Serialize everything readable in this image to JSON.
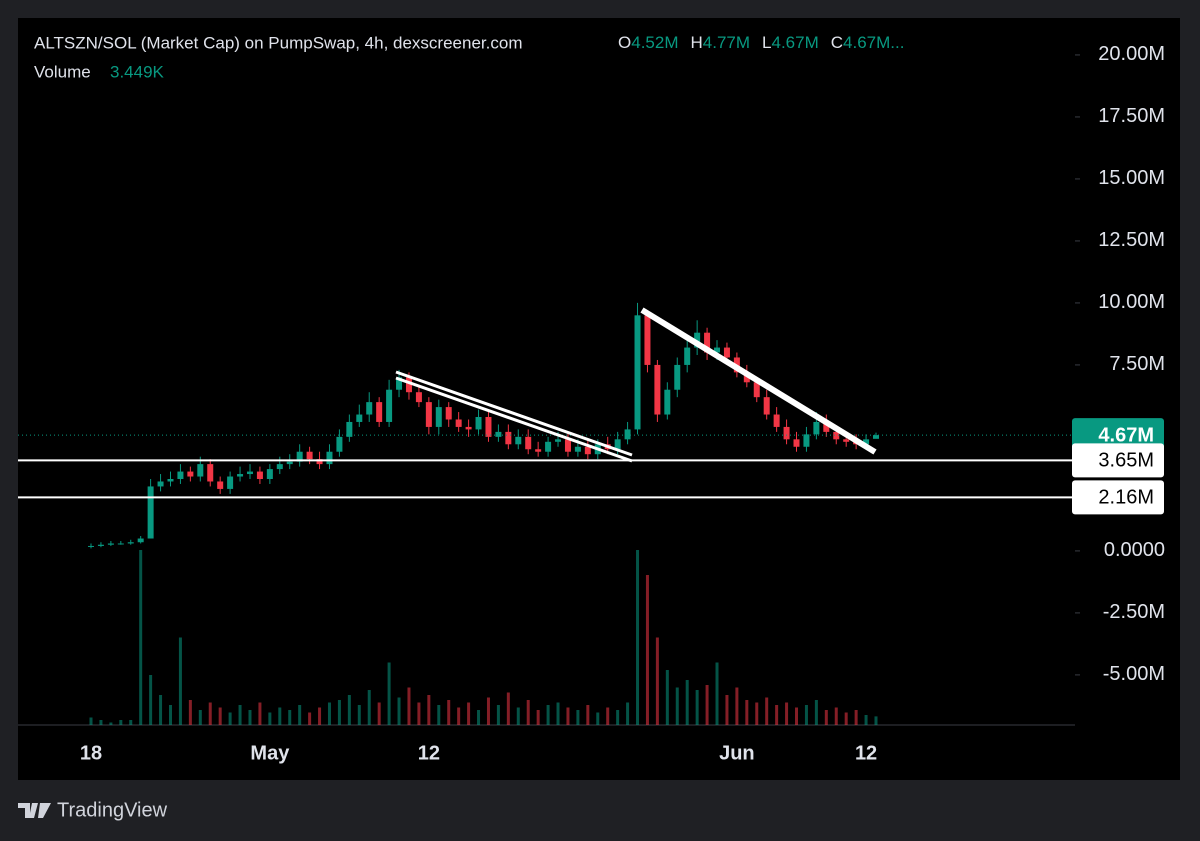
{
  "chart_data": {
    "type": "candlestick",
    "title": "ALTSZN/SOL (Market Cap) on PumpSwap, 4h, dexscreener.com",
    "ohlc_legend": [
      {
        "key": "O",
        "value": "4.52M"
      },
      {
        "key": "H",
        "value": "4.77M"
      },
      {
        "key": "L",
        "value": "4.67M"
      },
      {
        "key": "C",
        "value": "4.67M..."
      }
    ],
    "volume_label": "Volume",
    "volume_value": "3.449K",
    "up_color": "#089981",
    "down_color": "#f23645",
    "ylim": [
      -7.02,
      21.49
    ],
    "yticks": [
      {
        "value": -5,
        "label": "-5.00M"
      },
      {
        "value": -2.5,
        "label": "-2.50M"
      },
      {
        "value": 0,
        "label": "0.0000"
      },
      {
        "value": 7.5,
        "label": "7.50M"
      },
      {
        "value": 10,
        "label": "10.00M"
      },
      {
        "value": 12.5,
        "label": "12.50M"
      },
      {
        "value": 15,
        "label": "15.00M"
      },
      {
        "value": 17.5,
        "label": "17.50M"
      },
      {
        "value": 20,
        "label": "20.00M"
      }
    ],
    "price_lines": [
      {
        "value": 4.67,
        "label": "4.67M",
        "color": "#089981",
        "style": "dotted"
      },
      {
        "value": 3.65,
        "label": "3.65M",
        "color": "#ffffff",
        "style": "solid"
      },
      {
        "value": 2.16,
        "label": "2.16M",
        "color": "#ffffff",
        "style": "solid"
      }
    ],
    "categories": [
      "18",
      null,
      null,
      null,
      null,
      null,
      null,
      null,
      null,
      null,
      null,
      null,
      null,
      null,
      null,
      null,
      null,
      null,
      "May",
      null,
      null,
      null,
      null,
      null,
      null,
      null,
      null,
      null,
      null,
      null,
      null,
      null,
      null,
      null,
      "12",
      null,
      null,
      null,
      null,
      null,
      null,
      null,
      null,
      null,
      null,
      null,
      null,
      null,
      null,
      null,
      null,
      null,
      null,
      null,
      null,
      null,
      null,
      null,
      null,
      null,
      null,
      null,
      null,
      null,
      null,
      "Jun",
      null,
      null,
      null,
      null,
      null,
      null,
      null,
      null,
      null,
      null,
      null,
      null,
      "12",
      null
    ],
    "open": [
      0.2,
      0.2,
      0.25,
      0.3,
      0.3,
      0.35,
      0.5,
      2.6,
      2.8,
      2.9,
      3.2,
      3.0,
      3.5,
      2.8,
      2.5,
      3.0,
      3.1,
      3.2,
      2.9,
      3.3,
      3.5,
      3.6,
      4.0,
      3.7,
      3.5,
      4.0,
      4.6,
      5.2,
      5.5,
      6.0,
      5.2,
      6.5,
      7.0,
      6.4,
      6.0,
      5.0,
      5.8,
      5.3,
      5.0,
      4.9,
      5.4,
      4.6,
      4.8,
      4.3,
      4.6,
      4.1,
      4.0,
      4.4,
      4.5,
      4.0,
      4.2,
      3.9,
      4.3,
      4.1,
      4.5,
      4.9,
      9.5,
      7.5,
      5.5,
      6.5,
      7.5,
      8.2,
      8.8,
      8.0,
      8.2,
      7.8,
      7.2,
      6.8,
      6.2,
      5.5,
      5.0,
      4.5,
      4.2,
      4.7,
      5.2,
      4.8,
      4.5,
      4.4,
      4.3,
      4.52
    ],
    "high": [
      0.3,
      0.35,
      0.4,
      0.4,
      0.45,
      0.6,
      2.9,
      3.1,
      3.2,
      3.5,
      3.4,
      3.8,
      3.7,
      3.0,
      3.2,
      3.4,
      3.5,
      3.4,
      3.5,
      3.8,
      3.9,
      4.3,
      4.2,
      4.0,
      4.3,
      4.9,
      5.5,
      5.9,
      6.4,
      6.2,
      6.9,
      7.3,
      7.2,
      6.7,
      6.2,
      6.1,
      6.0,
      5.6,
      5.3,
      5.7,
      5.7,
      5.1,
      5.1,
      4.9,
      4.9,
      4.4,
      4.6,
      4.8,
      4.8,
      4.5,
      4.5,
      4.5,
      4.6,
      4.8,
      5.2,
      10.0,
      9.6,
      7.7,
      6.8,
      7.8,
      8.5,
      9.3,
      9.0,
      8.5,
      8.4,
      8.0,
      7.5,
      7.0,
      6.5,
      5.8,
      5.3,
      4.8,
      5.0,
      5.6,
      5.5,
      5.0,
      4.8,
      4.7,
      4.7,
      4.77
    ],
    "low": [
      0.1,
      0.15,
      0.2,
      0.25,
      0.25,
      0.3,
      0.5,
      2.4,
      2.6,
      2.7,
      2.8,
      2.8,
      2.6,
      2.3,
      2.3,
      2.8,
      2.9,
      2.7,
      2.7,
      3.1,
      3.3,
      3.4,
      3.5,
      3.3,
      3.3,
      3.8,
      4.4,
      5.0,
      5.2,
      5.0,
      5.0,
      6.2,
      6.1,
      5.8,
      4.7,
      4.7,
      5.0,
      4.8,
      4.6,
      4.7,
      4.4,
      4.4,
      4.1,
      4.1,
      3.9,
      3.8,
      3.8,
      4.2,
      3.8,
      3.8,
      3.7,
      3.7,
      3.9,
      3.9,
      4.3,
      4.7,
      7.2,
      5.2,
      5.3,
      6.2,
      7.2,
      7.9,
      7.7,
      7.7,
      7.5,
      7.0,
      6.6,
      6.0,
      5.3,
      4.8,
      4.3,
      4.0,
      4.0,
      4.5,
      4.6,
      4.3,
      4.2,
      4.1,
      4.1,
      4.67
    ],
    "close": [
      0.2,
      0.25,
      0.3,
      0.3,
      0.35,
      0.5,
      2.6,
      2.8,
      2.9,
      3.2,
      3.0,
      3.5,
      2.8,
      2.5,
      3.0,
      3.1,
      3.2,
      2.9,
      3.3,
      3.5,
      3.6,
      4.0,
      3.7,
      3.5,
      4.0,
      4.6,
      5.2,
      5.5,
      6.0,
      5.2,
      6.5,
      7.0,
      6.4,
      6.0,
      5.0,
      5.8,
      5.3,
      5.0,
      4.9,
      5.4,
      4.6,
      4.8,
      4.3,
      4.6,
      4.1,
      4.0,
      4.4,
      4.5,
      4.0,
      4.2,
      3.9,
      4.3,
      4.1,
      4.5,
      4.9,
      9.5,
      7.5,
      5.5,
      6.5,
      7.5,
      8.2,
      8.8,
      8.0,
      8.2,
      7.8,
      7.2,
      6.8,
      6.2,
      5.5,
      5.0,
      4.5,
      4.2,
      4.7,
      5.2,
      4.8,
      4.5,
      4.4,
      4.3,
      4.5,
      4.67
    ],
    "volume": [
      3,
      2,
      1,
      2,
      2,
      70,
      20,
      12,
      8,
      35,
      10,
      6,
      9,
      7,
      5,
      8,
      6,
      9,
      5,
      7,
      6,
      8,
      5,
      7,
      9,
      10,
      12,
      8,
      14,
      9,
      25,
      11,
      15,
      9,
      12,
      8,
      10,
      7,
      9,
      6,
      11,
      8,
      13,
      7,
      10,
      6,
      8,
      9,
      7,
      6,
      8,
      5,
      7,
      6,
      9,
      70,
      60,
      35,
      22,
      15,
      18,
      14,
      16,
      25,
      12,
      15,
      10,
      9,
      11,
      8,
      9,
      7,
      8,
      10,
      6,
      7,
      5,
      6,
      4,
      3.449
    ],
    "brand": "TradingView"
  }
}
